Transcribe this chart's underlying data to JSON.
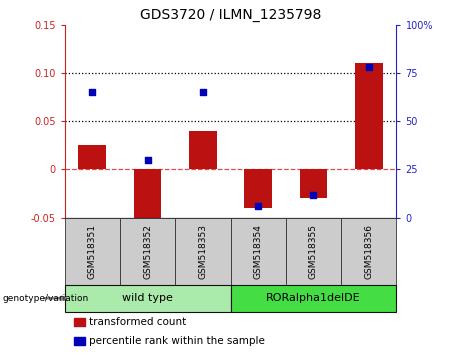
{
  "title": "GDS3720 / ILMN_1235798",
  "samples": [
    "GSM518351",
    "GSM518352",
    "GSM518353",
    "GSM518354",
    "GSM518355",
    "GSM518356"
  ],
  "transformed_count": [
    0.025,
    -0.062,
    0.04,
    -0.04,
    -0.03,
    0.11
  ],
  "percentile_rank": [
    65,
    30,
    65,
    6,
    12,
    78
  ],
  "bar_color": "#bb1111",
  "dot_color": "#0000bb",
  "left_ylim": [
    -0.05,
    0.15
  ],
  "right_ylim": [
    0,
    100
  ],
  "left_yticks": [
    -0.05,
    0.0,
    0.05,
    0.1,
    0.15
  ],
  "left_yticklabels": [
    "-0.05",
    "0",
    "0.05",
    "0.10",
    "0.15"
  ],
  "right_yticks": [
    0,
    25,
    50,
    75,
    100
  ],
  "right_yticklabels": [
    "0",
    "25",
    "50",
    "75",
    "100%"
  ],
  "hlines": [
    0.05,
    0.1
  ],
  "groups": [
    {
      "label": "wild type",
      "indices": [
        0,
        1,
        2
      ],
      "color": "#aaeaaa"
    },
    {
      "label": "RORalpha1delDE",
      "indices": [
        3,
        4,
        5
      ],
      "color": "#44dd44"
    }
  ],
  "genotype_label": "genotype/variation",
  "legend_items": [
    {
      "label": "transformed count",
      "color": "#bb1111"
    },
    {
      "label": "percentile rank within the sample",
      "color": "#0000bb"
    }
  ],
  "tick_label_color_left": "#cc2222",
  "tick_label_color_right": "#2222cc",
  "zero_line_color": "#cc2222",
  "sample_box_color": "#cccccc",
  "title_fontsize": 10,
  "axis_fontsize": 7,
  "legend_fontsize": 7.5
}
